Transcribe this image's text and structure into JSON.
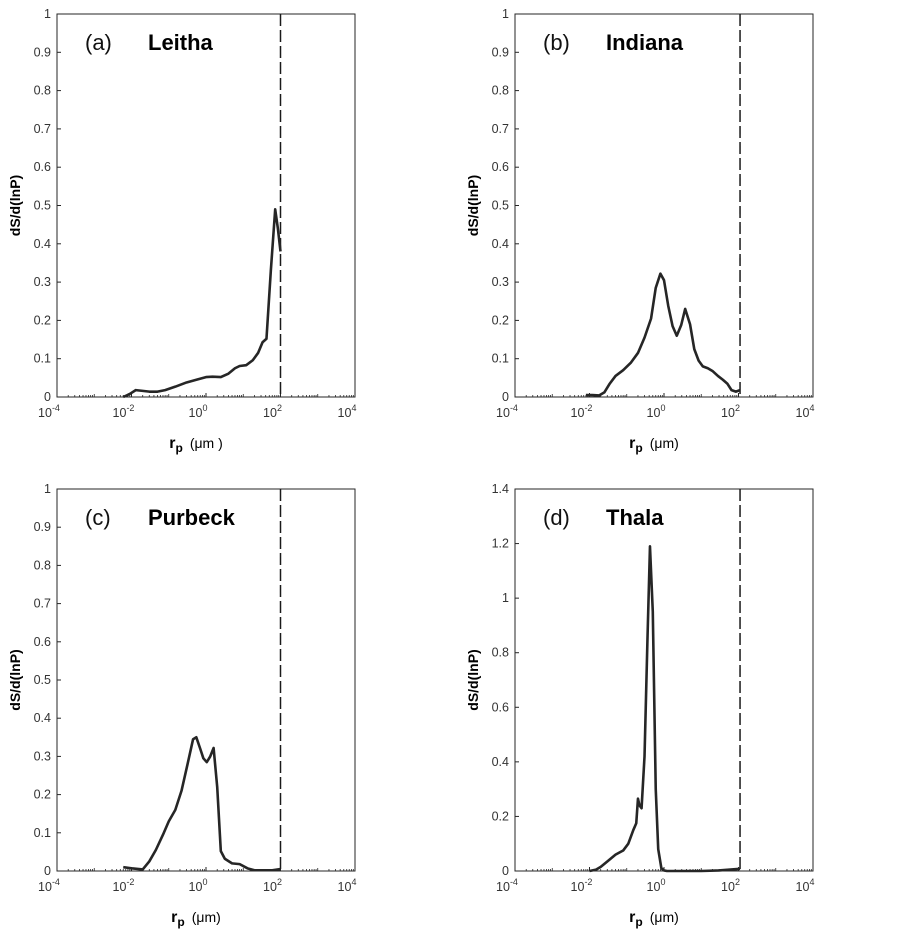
{
  "chart_data": [
    {
      "type": "line",
      "panel_label": "(a)",
      "title": "Leitha",
      "ylabel": "dS/d(lnP)",
      "xlabel": {
        "symbol": "r",
        "subscript": "p",
        "unit": "(μm )"
      },
      "xscale": "log",
      "xlim": [
        0.0001,
        10000
      ],
      "ylim": [
        0,
        1
      ],
      "yticks": [
        "0",
        "0.1",
        "0.2",
        "0.3",
        "0.4",
        "0.5",
        "0.6",
        "0.7",
        "0.8",
        "0.9",
        "1"
      ],
      "xticks": [
        {
          "base": "10",
          "exp": "-4"
        },
        {
          "base": "10",
          "exp": "-2"
        },
        {
          "base": "10",
          "exp": "0"
        },
        {
          "base": "10",
          "exp": "2"
        },
        {
          "base": "10",
          "exp": "4"
        }
      ],
      "vline_x": 100,
      "line_color": "#262626",
      "series": [
        {
          "x": [
            0.006,
            0.009,
            0.013,
            0.02,
            0.03,
            0.05,
            0.08,
            0.15,
            0.3,
            0.6,
            1.0,
            1.5,
            2.5,
            4,
            6,
            8,
            12,
            18,
            25,
            33,
            42,
            55,
            72,
            85,
            100
          ],
          "y": [
            0.0,
            0.008,
            0.018,
            0.016,
            0.014,
            0.014,
            0.018,
            0.027,
            0.038,
            0.046,
            0.052,
            0.053,
            0.052,
            0.061,
            0.075,
            0.081,
            0.083,
            0.096,
            0.115,
            0.143,
            0.152,
            0.33,
            0.49,
            0.44,
            0.38
          ]
        }
      ]
    },
    {
      "type": "line",
      "panel_label": "(b)",
      "title": "Indiana",
      "ylabel": "dS/d(lnP)",
      "xlabel": {
        "symbol": "r",
        "subscript": "p",
        "unit": "(μm)"
      },
      "xscale": "log",
      "xlim": [
        0.0001,
        10000
      ],
      "ylim": [
        0,
        1
      ],
      "yticks": [
        "0",
        "0.1",
        "0.2",
        "0.3",
        "0.4",
        "0.5",
        "0.6",
        "0.7",
        "0.8",
        "0.9",
        "1"
      ],
      "xticks": [
        {
          "base": "10",
          "exp": "-4"
        },
        {
          "base": "10",
          "exp": "-2"
        },
        {
          "base": "10",
          "exp": "0"
        },
        {
          "base": "10",
          "exp": "2"
        },
        {
          "base": "10",
          "exp": "4"
        }
      ],
      "vline_x": 110,
      "line_color": "#262626",
      "series": [
        {
          "x": [
            0.008,
            0.012,
            0.018,
            0.025,
            0.035,
            0.05,
            0.08,
            0.13,
            0.2,
            0.3,
            0.45,
            0.6,
            0.8,
            1.0,
            1.3,
            1.7,
            2.2,
            2.9,
            3.7,
            5.0,
            6.5,
            8.5,
            11,
            15,
            20,
            28,
            38,
            50,
            65,
            85,
            110
          ],
          "y": [
            0.005,
            0.005,
            0.004,
            0.012,
            0.035,
            0.055,
            0.07,
            0.09,
            0.115,
            0.155,
            0.205,
            0.285,
            0.322,
            0.305,
            0.238,
            0.185,
            0.16,
            0.188,
            0.23,
            0.19,
            0.125,
            0.095,
            0.08,
            0.075,
            0.068,
            0.055,
            0.045,
            0.035,
            0.018,
            0.014,
            0.018
          ]
        }
      ]
    },
    {
      "type": "line",
      "panel_label": "(c)",
      "title": "Purbeck",
      "ylabel": "dS/d(lnP)",
      "xlabel": {
        "symbol": "r",
        "subscript": "p",
        "unit": "(μm)"
      },
      "xscale": "log",
      "xlim": [
        0.0001,
        10000
      ],
      "ylim": [
        0,
        1
      ],
      "yticks": [
        "0",
        "0.1",
        "0.2",
        "0.3",
        "0.4",
        "0.5",
        "0.6",
        "0.7",
        "0.8",
        "0.9",
        "1"
      ],
      "xticks": [
        {
          "base": "10",
          "exp": "-4"
        },
        {
          "base": "10",
          "exp": "-2"
        },
        {
          "base": "10",
          "exp": "0"
        },
        {
          "base": "10",
          "exp": "2"
        },
        {
          "base": "10",
          "exp": "4"
        }
      ],
      "vline_x": 100,
      "line_color": "#262626",
      "series": [
        {
          "x": [
            0.006,
            0.01,
            0.02,
            0.03,
            0.045,
            0.07,
            0.1,
            0.15,
            0.22,
            0.32,
            0.45,
            0.55,
            0.7,
            0.85,
            1.05,
            1.3,
            1.6,
            2.0,
            2.5,
            3.2,
            5,
            8,
            13,
            20,
            35,
            60,
            100
          ],
          "y": [
            0.01,
            0.007,
            0.004,
            0.025,
            0.055,
            0.095,
            0.13,
            0.16,
            0.21,
            0.28,
            0.345,
            0.35,
            0.32,
            0.295,
            0.285,
            0.3,
            0.322,
            0.22,
            0.052,
            0.032,
            0.02,
            0.018,
            0.007,
            0.002,
            0.002,
            0.002,
            0.005
          ]
        }
      ]
    },
    {
      "type": "line",
      "panel_label": "(d)",
      "title": "Thala",
      "ylabel": "dS/d(lnP)",
      "xlabel": {
        "symbol": "r",
        "subscript": "p",
        "unit": "(μm)"
      },
      "xscale": "log",
      "xlim": [
        0.0001,
        10000
      ],
      "ylim": [
        0,
        1.4
      ],
      "yticks": [
        "0",
        "0.2",
        "0.4",
        "0.6",
        "0.8",
        "1",
        "1.2",
        "1.4"
      ],
      "xticks": [
        {
          "base": "10",
          "exp": "-4"
        },
        {
          "base": "10",
          "exp": "-2"
        },
        {
          "base": "10",
          "exp": "0"
        },
        {
          "base": "10",
          "exp": "2"
        },
        {
          "base": "10",
          "exp": "4"
        }
      ],
      "vline_x": 110,
      "line_color": "#262626",
      "series": [
        {
          "x": [
            0.01,
            0.015,
            0.02,
            0.03,
            0.05,
            0.08,
            0.11,
            0.15,
            0.18,
            0.2,
            0.22,
            0.25,
            0.3,
            0.36,
            0.42,
            0.5,
            0.6,
            0.7,
            0.85,
            1.0,
            1.2,
            3,
            10,
            30,
            110
          ],
          "y": [
            0.0,
            0.005,
            0.015,
            0.035,
            0.06,
            0.075,
            0.1,
            0.15,
            0.175,
            0.265,
            0.24,
            0.23,
            0.42,
            0.85,
            1.19,
            0.95,
            0.3,
            0.08,
            0.01,
            0.002,
            0.0,
            0.0,
            0.0,
            0.002,
            0.008
          ]
        }
      ]
    }
  ]
}
